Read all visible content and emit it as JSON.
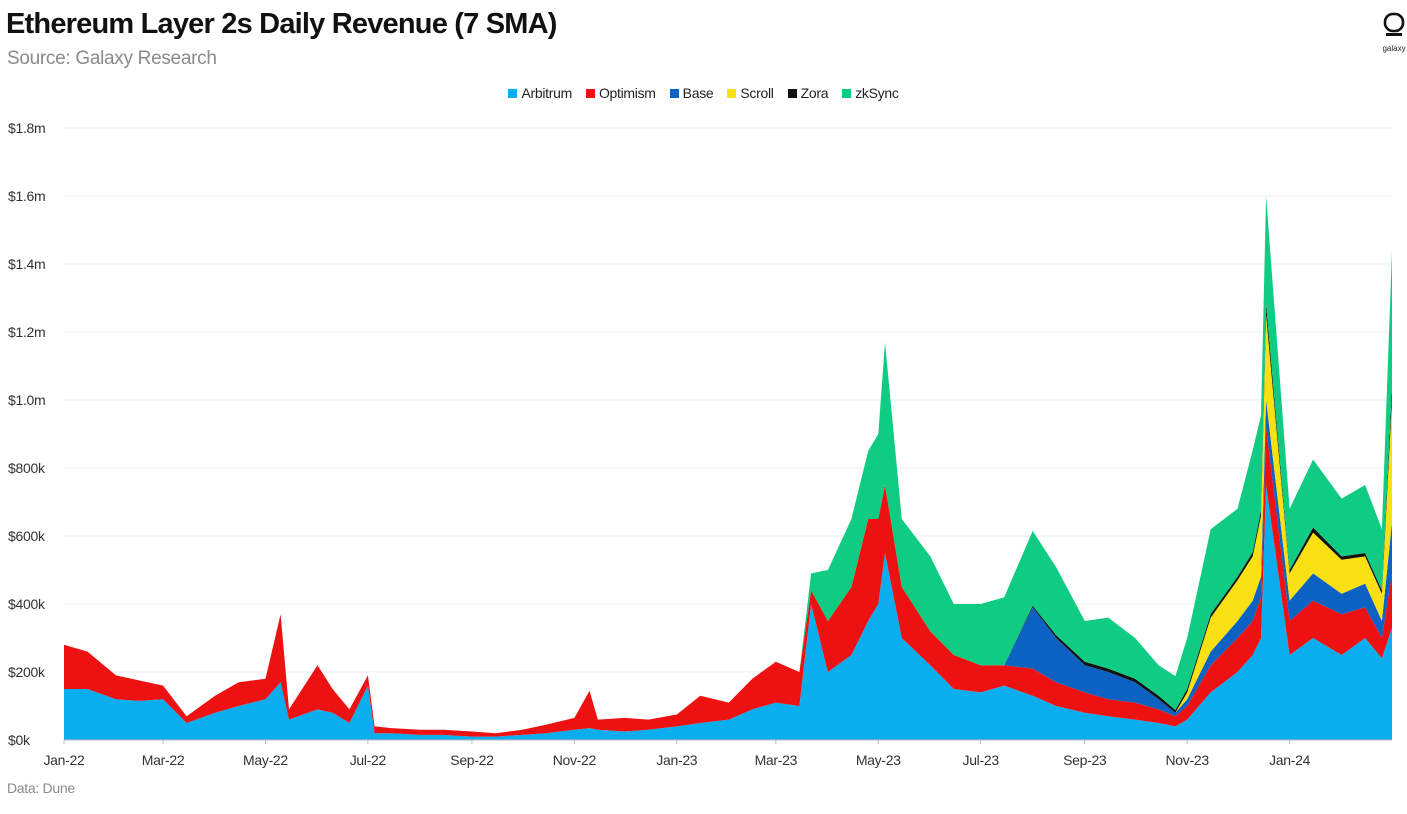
{
  "header": {
    "title": "Ethereum Layer 2s Daily Revenue (7 SMA)",
    "subtitle": "Source: Galaxy Research"
  },
  "logo": {
    "text": "galaxy"
  },
  "footer": {
    "text": "Data: Dune"
  },
  "chart_data": {
    "type": "area",
    "stacked": true,
    "title": "Ethereum Layer 2s Daily Revenue (7 SMA)",
    "subtitle": "Source: Galaxy Research",
    "xlabel": "",
    "ylabel": "",
    "ylim": [
      0,
      1800000
    ],
    "y_ticks": [
      {
        "value": 0,
        "label": "$0k"
      },
      {
        "value": 200000,
        "label": "$200k"
      },
      {
        "value": 400000,
        "label": "$400k"
      },
      {
        "value": 600000,
        "label": "$600k"
      },
      {
        "value": 800000,
        "label": "$800k"
      },
      {
        "value": 1000000,
        "label": "$1.0m"
      },
      {
        "value": 1200000,
        "label": "$1.2m"
      },
      {
        "value": 1400000,
        "label": "$1.4m"
      },
      {
        "value": 1600000,
        "label": "$1.6m"
      },
      {
        "value": 1800000,
        "label": "$1.8m"
      }
    ],
    "x_ticks": [
      "Jan-22",
      "Mar-22",
      "May-22",
      "Jul-22",
      "Sep-22",
      "Nov-22",
      "Jan-23",
      "Mar-23",
      "May-23",
      "Jul-23",
      "Sep-23",
      "Nov-23",
      "Jan-24"
    ],
    "legend_position": "top-center",
    "grid": true,
    "x": [
      "2022-01-01",
      "2022-01-15",
      "2022-02-01",
      "2022-02-15",
      "2022-03-01",
      "2022-03-15",
      "2022-04-01",
      "2022-04-15",
      "2022-05-01",
      "2022-05-10",
      "2022-05-15",
      "2022-06-01",
      "2022-06-10",
      "2022-06-20",
      "2022-07-01",
      "2022-07-05",
      "2022-07-15",
      "2022-08-01",
      "2022-08-15",
      "2022-09-01",
      "2022-09-15",
      "2022-10-01",
      "2022-10-15",
      "2022-11-01",
      "2022-11-10",
      "2022-11-15",
      "2022-12-01",
      "2022-12-15",
      "2023-01-01",
      "2023-01-15",
      "2023-02-01",
      "2023-02-15",
      "2023-03-01",
      "2023-03-15",
      "2023-03-22",
      "2023-04-01",
      "2023-04-15",
      "2023-04-25",
      "2023-05-01",
      "2023-05-05",
      "2023-05-15",
      "2023-06-01",
      "2023-06-15",
      "2023-07-01",
      "2023-07-15",
      "2023-08-01",
      "2023-08-15",
      "2023-09-01",
      "2023-09-15",
      "2023-10-01",
      "2023-10-15",
      "2023-10-25",
      "2023-11-01",
      "2023-11-15",
      "2023-12-01",
      "2023-12-10",
      "2023-12-15",
      "2023-12-18",
      "2024-01-01",
      "2024-01-15",
      "2024-02-01",
      "2024-02-15",
      "2024-02-25",
      "2024-03-02"
    ],
    "colors": {
      "Arbitrum": "#0aaeef",
      "Optimism": "#ee1111",
      "Base": "#0c62c3",
      "Scroll": "#f8e012",
      "Zora": "#111111",
      "zkSync": "#10cc82"
    },
    "series": [
      {
        "name": "Arbitrum",
        "values": [
          150000,
          150000,
          120000,
          115000,
          120000,
          50000,
          80000,
          100000,
          120000,
          170000,
          60000,
          90000,
          80000,
          50000,
          160000,
          20000,
          20000,
          15000,
          15000,
          10000,
          10000,
          15000,
          20000,
          30000,
          35000,
          30000,
          25000,
          30000,
          40000,
          50000,
          60000,
          90000,
          110000,
          100000,
          400000,
          200000,
          250000,
          350000,
          400000,
          550000,
          300000,
          220000,
          150000,
          140000,
          160000,
          130000,
          100000,
          80000,
          70000,
          60000,
          50000,
          40000,
          60000,
          140000,
          200000,
          250000,
          300000,
          750000,
          250000,
          300000,
          250000,
          300000,
          240000,
          330000
        ]
      },
      {
        "name": "Optimism",
        "values": [
          130000,
          110000,
          70000,
          60000,
          40000,
          20000,
          50000,
          70000,
          60000,
          200000,
          30000,
          130000,
          70000,
          40000,
          30000,
          20000,
          15000,
          15000,
          15000,
          15000,
          10000,
          15000,
          25000,
          35000,
          110000,
          30000,
          40000,
          30000,
          35000,
          80000,
          50000,
          90000,
          120000,
          100000,
          40000,
          150000,
          200000,
          300000,
          250000,
          200000,
          150000,
          100000,
          100000,
          80000,
          60000,
          80000,
          70000,
          60000,
          50000,
          50000,
          40000,
          30000,
          40000,
          80000,
          100000,
          100000,
          120000,
          170000,
          100000,
          110000,
          120000,
          90000,
          60000,
          160000
        ]
      },
      {
        "name": "Base",
        "values": [
          0,
          0,
          0,
          0,
          0,
          0,
          0,
          0,
          0,
          0,
          0,
          0,
          0,
          0,
          0,
          0,
          0,
          0,
          0,
          0,
          0,
          0,
          0,
          0,
          0,
          0,
          0,
          0,
          0,
          0,
          0,
          0,
          0,
          0,
          0,
          0,
          0,
          0,
          0,
          0,
          0,
          0,
          0,
          0,
          0,
          180000,
          130000,
          80000,
          80000,
          60000,
          30000,
          10000,
          20000,
          40000,
          50000,
          60000,
          60000,
          80000,
          60000,
          80000,
          60000,
          70000,
          50000,
          150000
        ]
      },
      {
        "name": "Scroll",
        "values": [
          0,
          0,
          0,
          0,
          0,
          0,
          0,
          0,
          0,
          0,
          0,
          0,
          0,
          0,
          0,
          0,
          0,
          0,
          0,
          0,
          0,
          0,
          0,
          0,
          0,
          0,
          0,
          0,
          0,
          0,
          0,
          0,
          0,
          0,
          0,
          0,
          0,
          0,
          0,
          0,
          0,
          0,
          0,
          0,
          0,
          0,
          0,
          0,
          0,
          0,
          0,
          0,
          20000,
          100000,
          120000,
          130000,
          180000,
          250000,
          80000,
          120000,
          100000,
          80000,
          80000,
          360000
        ]
      },
      {
        "name": "Zora",
        "values": [
          0,
          0,
          0,
          0,
          0,
          0,
          0,
          0,
          0,
          0,
          0,
          0,
          0,
          0,
          0,
          0,
          0,
          0,
          0,
          0,
          0,
          0,
          0,
          0,
          0,
          0,
          0,
          0,
          0,
          0,
          0,
          0,
          0,
          0,
          0,
          0,
          0,
          0,
          0,
          0,
          0,
          0,
          0,
          0,
          0,
          5000,
          8000,
          10000,
          10000,
          10000,
          10000,
          8000,
          10000,
          10000,
          10000,
          12000,
          15000,
          30000,
          10000,
          15000,
          10000,
          10000,
          10000,
          40000
        ]
      },
      {
        "name": "zkSync",
        "values": [
          0,
          0,
          0,
          0,
          0,
          0,
          0,
          0,
          0,
          0,
          0,
          0,
          0,
          0,
          0,
          0,
          0,
          0,
          0,
          0,
          0,
          0,
          0,
          0,
          0,
          0,
          0,
          0,
          0,
          0,
          0,
          0,
          0,
          0,
          50000,
          150000,
          200000,
          200000,
          250000,
          420000,
          200000,
          220000,
          150000,
          180000,
          200000,
          220000,
          200000,
          120000,
          150000,
          120000,
          90000,
          100000,
          150000,
          250000,
          200000,
          300000,
          280000,
          320000,
          180000,
          200000,
          170000,
          200000,
          180000,
          400000
        ]
      }
    ]
  }
}
